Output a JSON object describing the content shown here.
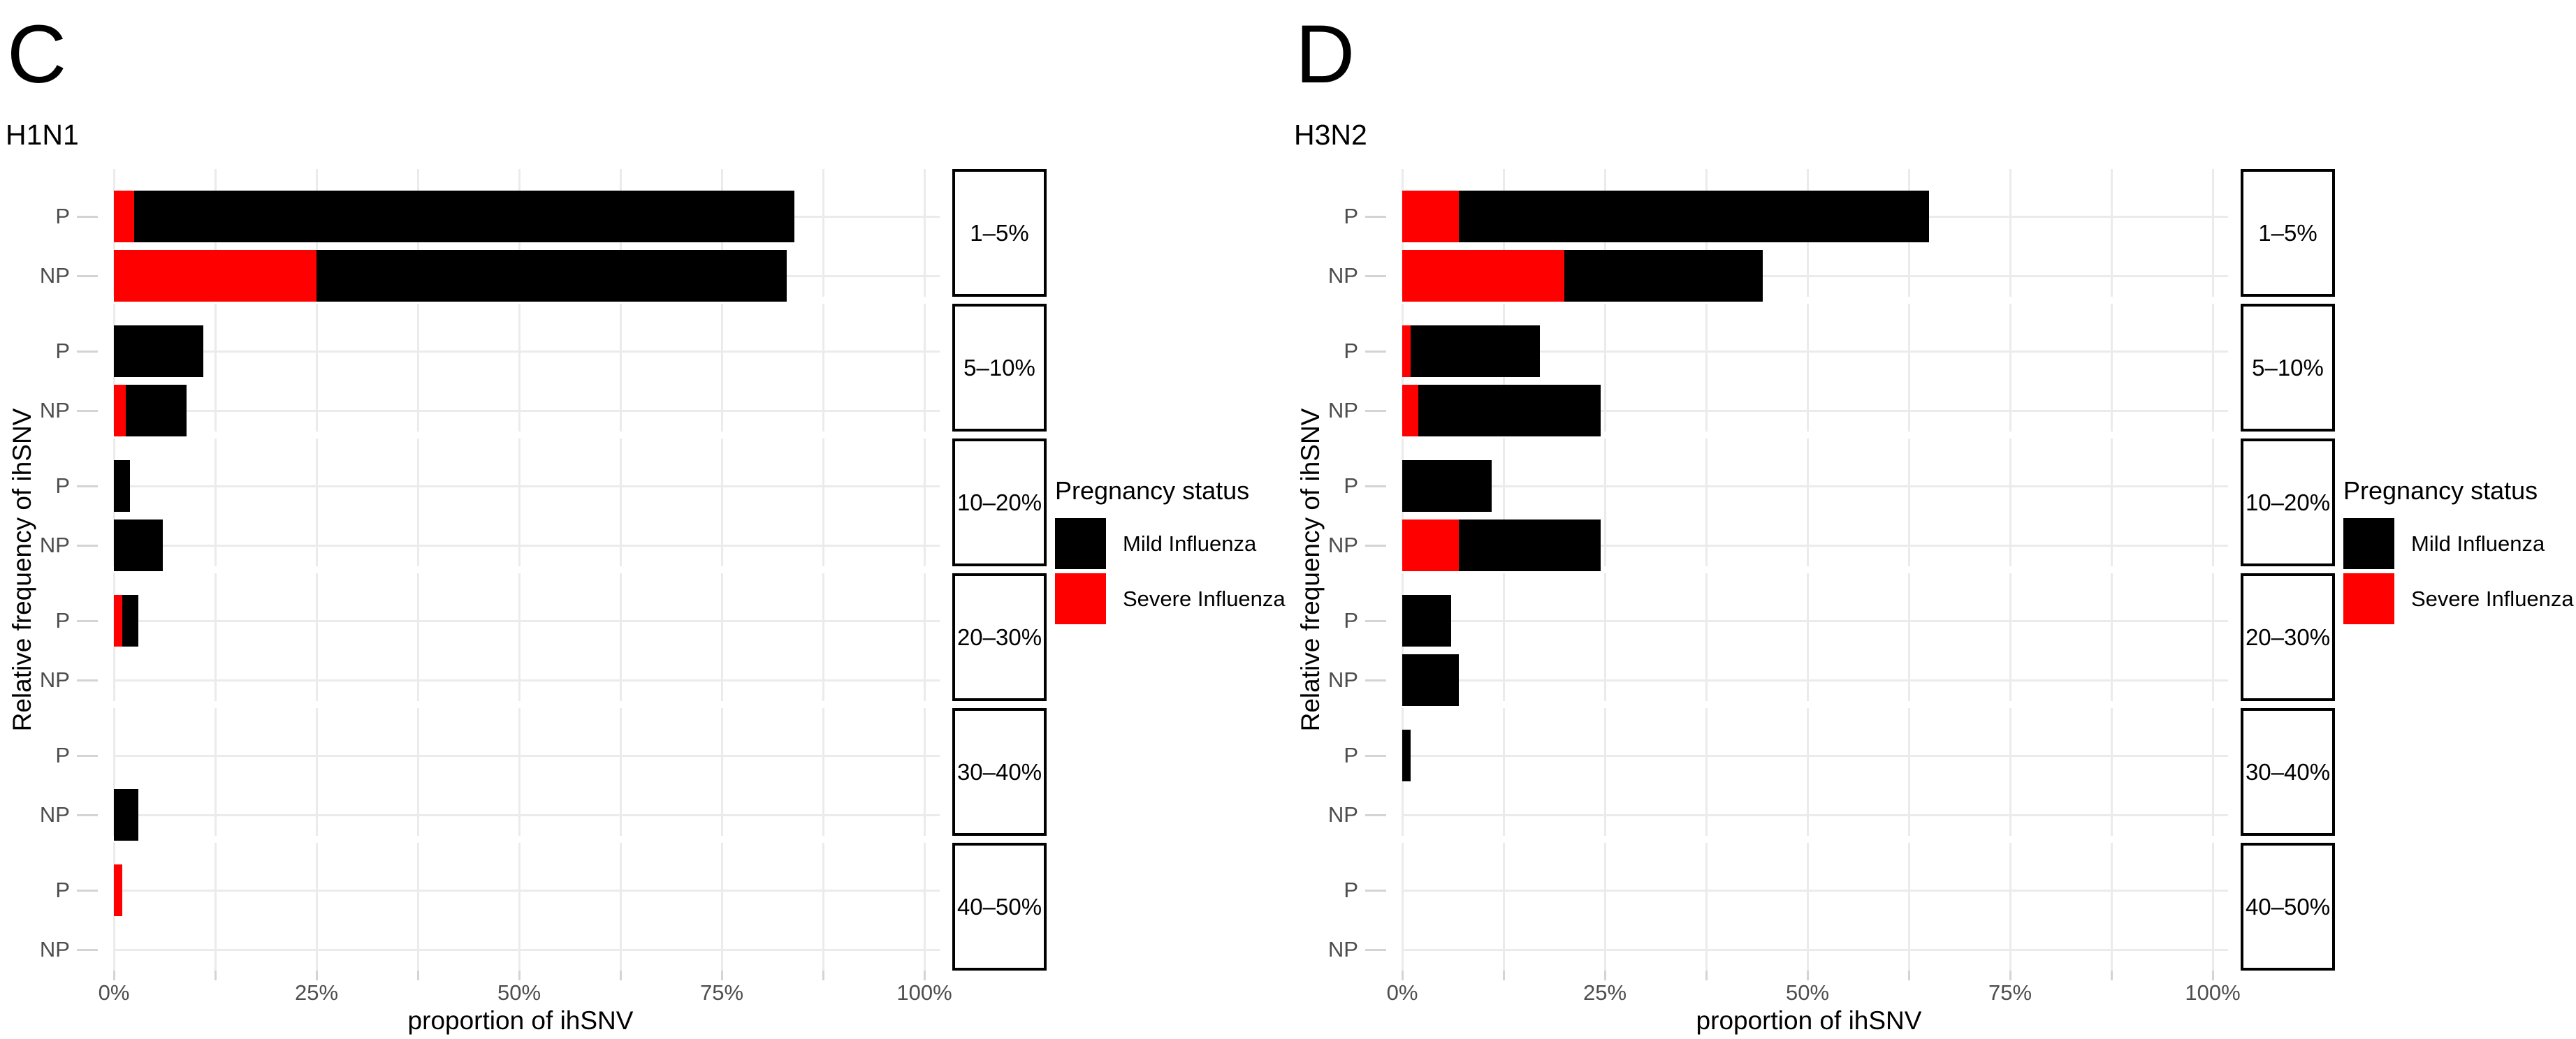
{
  "chart_data": [
    {
      "type": "bar",
      "orientation": "horizontal",
      "stacked": true,
      "panel_label": "C",
      "title": "H1N1",
      "xlabel": "proportion of ihSNV",
      "ylabel": "Relative frequency of ihSNV",
      "xlim": [
        0,
        100
      ],
      "gridline_step_pct": 12.5,
      "grid": true,
      "legend_position": "right",
      "x_ticks": [
        {
          "pos": 0,
          "label": "0%"
        },
        {
          "pos": 25,
          "label": "25%"
        },
        {
          "pos": 50,
          "label": "50%"
        },
        {
          "pos": 75,
          "label": "75%"
        },
        {
          "pos": 100,
          "label": "100%"
        }
      ],
      "row_labels": [
        "P",
        "NP"
      ],
      "facets": [
        {
          "label": "1–5%",
          "rows": [
            {
              "group": "P",
              "severe_pct": 2.5,
              "mild_pct": 81.5
            },
            {
              "group": "NP",
              "severe_pct": 25,
              "mild_pct": 58
            }
          ]
        },
        {
          "label": "5–10%",
          "rows": [
            {
              "group": "P",
              "severe_pct": 0,
              "mild_pct": 11
            },
            {
              "group": "NP",
              "severe_pct": 1.5,
              "mild_pct": 7.5
            }
          ]
        },
        {
          "label": "10–20%",
          "rows": [
            {
              "group": "P",
              "severe_pct": 0,
              "mild_pct": 2
            },
            {
              "group": "NP",
              "severe_pct": 0,
              "mild_pct": 6
            }
          ]
        },
        {
          "label": "20–30%",
          "rows": [
            {
              "group": "P",
              "severe_pct": 1,
              "mild_pct": 2
            },
            {
              "group": "NP",
              "severe_pct": 0,
              "mild_pct": 0
            }
          ]
        },
        {
          "label": "30–40%",
          "rows": [
            {
              "group": "P",
              "severe_pct": 0,
              "mild_pct": 0
            },
            {
              "group": "NP",
              "severe_pct": 0,
              "mild_pct": 3
            }
          ]
        },
        {
          "label": "40–50%",
          "rows": [
            {
              "group": "P",
              "severe_pct": 1,
              "mild_pct": 0
            },
            {
              "group": "NP",
              "severe_pct": 0,
              "mild_pct": 0
            }
          ]
        }
      ]
    },
    {
      "type": "bar",
      "orientation": "horizontal",
      "stacked": true,
      "panel_label": "D",
      "title": "H3N2",
      "xlabel": "proportion of ihSNV",
      "ylabel": "Relative frequency of ihSNV",
      "xlim": [
        0,
        100
      ],
      "gridline_step_pct": 12.5,
      "grid": true,
      "legend_position": "right",
      "x_ticks": [
        {
          "pos": 0,
          "label": "0%"
        },
        {
          "pos": 25,
          "label": "25%"
        },
        {
          "pos": 50,
          "label": "50%"
        },
        {
          "pos": 75,
          "label": "75%"
        },
        {
          "pos": 100,
          "label": "100%"
        }
      ],
      "row_labels": [
        "P",
        "NP"
      ],
      "facets": [
        {
          "label": "1–5%",
          "rows": [
            {
              "group": "P",
              "severe_pct": 7,
              "mild_pct": 58
            },
            {
              "group": "NP",
              "severe_pct": 20,
              "mild_pct": 24.5
            }
          ]
        },
        {
          "label": "5–10%",
          "rows": [
            {
              "group": "P",
              "severe_pct": 1,
              "mild_pct": 16
            },
            {
              "group": "NP",
              "severe_pct": 2,
              "mild_pct": 22.5
            }
          ]
        },
        {
          "label": "10–20%",
          "rows": [
            {
              "group": "P",
              "severe_pct": 0,
              "mild_pct": 11
            },
            {
              "group": "NP",
              "severe_pct": 7,
              "mild_pct": 17.5
            }
          ]
        },
        {
          "label": "20–30%",
          "rows": [
            {
              "group": "P",
              "severe_pct": 0,
              "mild_pct": 6
            },
            {
              "group": "NP",
              "severe_pct": 0,
              "mild_pct": 7
            }
          ]
        },
        {
          "label": "30–40%",
          "rows": [
            {
              "group": "P",
              "severe_pct": 0,
              "mild_pct": 1
            },
            {
              "group": "NP",
              "severe_pct": 0,
              "mild_pct": 0
            }
          ]
        },
        {
          "label": "40–50%",
          "rows": [
            {
              "group": "P",
              "severe_pct": 0,
              "mild_pct": 0
            },
            {
              "group": "NP",
              "severe_pct": 0,
              "mild_pct": 0
            }
          ]
        }
      ]
    }
  ],
  "legend": {
    "title": "Pregnancy status",
    "items": [
      {
        "label": "Mild Influenza",
        "color": "#000000",
        "series_key": "mild_pct"
      },
      {
        "label": "Severe Influenza",
        "color": "#FF0000",
        "series_key": "severe_pct"
      }
    ]
  },
  "style": {
    "background": "#FFFFFF",
    "grid_color": "#EBEBEB",
    "tick_mark_color": "#D4D4D4",
    "axis_text_color": "#4D4D4D",
    "facet_border_color": "#000000",
    "mild_color": "#000000",
    "severe_color": "#FF0000"
  }
}
